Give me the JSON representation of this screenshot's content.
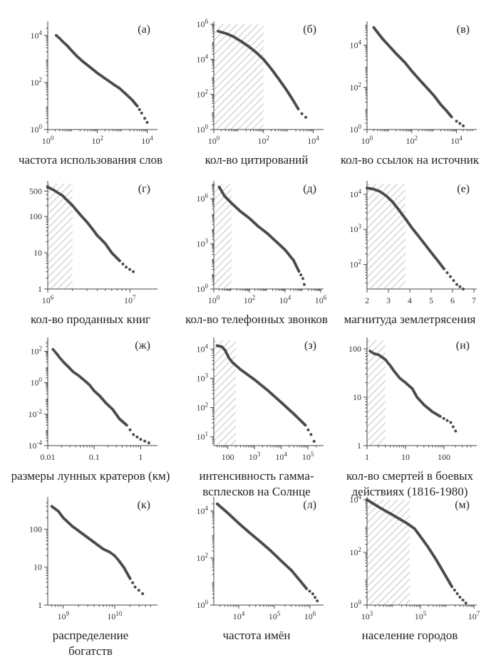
{
  "colors": {
    "points": "#4a4a4a",
    "hatch": "#c8c8c8",
    "axis": "#444444"
  },
  "chart_data": [
    {
      "id": "a",
      "letter": "(а)",
      "type": "scatter",
      "xlog": true,
      "ylog": true,
      "xlim": [
        1,
        20000
      ],
      "ylim": [
        1,
        30000
      ],
      "xticks": [
        1,
        100,
        10000
      ],
      "xtick_labels": [
        "10^0",
        "10^2",
        "10^4"
      ],
      "yticks": [
        1,
        100,
        10000
      ],
      "ytick_labels": [
        "10^0",
        "10^2",
        "10^4"
      ],
      "caption": "частота использования слов",
      "hatch": null,
      "points": [
        [
          2.2,
          10000
        ],
        [
          3,
          7500
        ],
        [
          4,
          5500
        ],
        [
          6,
          3700
        ],
        [
          9,
          2300
        ],
        [
          15,
          1300
        ],
        [
          25,
          800
        ],
        [
          50,
          450
        ],
        [
          100,
          250
        ],
        [
          200,
          150
        ],
        [
          400,
          90
        ],
        [
          800,
          55
        ],
        [
          1500,
          30
        ],
        [
          2500,
          18
        ],
        [
          4000,
          10
        ],
        [
          6000,
          5
        ],
        [
          8000,
          3
        ],
        [
          10000,
          2
        ]
      ]
    },
    {
      "id": "b",
      "letter": "(б)",
      "type": "scatter",
      "xlog": true,
      "ylog": true,
      "xlim": [
        1,
        20000
      ],
      "ylim": [
        1,
        1000000
      ],
      "xticks": [
        1,
        100,
        10000
      ],
      "xtick_labels": [
        "10^0",
        "10^2",
        "10^4"
      ],
      "yticks": [
        1,
        100,
        10000,
        1000000
      ],
      "ytick_labels": [
        "10^0",
        "10^2",
        "10^4",
        "10^6"
      ],
      "caption": "кол-во цитирований",
      "hatch": [
        1,
        100
      ],
      "points": [
        [
          1.5,
          400000
        ],
        [
          3,
          300000
        ],
        [
          6,
          200000
        ],
        [
          12,
          110000
        ],
        [
          25,
          55000
        ],
        [
          50,
          25000
        ],
        [
          100,
          10000
        ],
        [
          200,
          3000
        ],
        [
          400,
          800
        ],
        [
          800,
          200
        ],
        [
          1500,
          50
        ],
        [
          2500,
          15
        ],
        [
          3500,
          8
        ],
        [
          5000,
          5
        ]
      ]
    },
    {
      "id": "c",
      "letter": "(в)",
      "type": "scatter",
      "xlog": true,
      "ylog": true,
      "xlim": [
        1,
        60000
      ],
      "ylim": [
        1,
        100000
      ],
      "xticks": [
        1,
        100,
        10000
      ],
      "xtick_labels": [
        "10^0",
        "10^2",
        "10^4"
      ],
      "yticks": [
        1,
        100,
        10000
      ],
      "ytick_labels": [
        "10^0",
        "10^2",
        "10^4"
      ],
      "caption": "кол-во ссылок на источник",
      "hatch": null,
      "points": [
        [
          2,
          70000
        ],
        [
          3,
          40000
        ],
        [
          5,
          20000
        ],
        [
          10,
          9000
        ],
        [
          20,
          4000
        ],
        [
          50,
          1500
        ],
        [
          100,
          600
        ],
        [
          250,
          200
        ],
        [
          500,
          90
        ],
        [
          1000,
          40
        ],
        [
          2000,
          15
        ],
        [
          3500,
          8
        ],
        [
          6000,
          4
        ],
        [
          10000,
          2.5
        ],
        [
          20000,
          1.5
        ]
      ]
    },
    {
      "id": "d",
      "letter": "(г)",
      "type": "scatter",
      "xlog": true,
      "ylog": true,
      "xlim": [
        1000000,
        20000000
      ],
      "ylim": [
        1,
        800
      ],
      "xticks": [
        1000000,
        10000000
      ],
      "xtick_labels": [
        "10^6",
        "10^7"
      ],
      "yticks": [
        1,
        10,
        100
      ],
      "ytick_labels": [
        "1",
        "10",
        "100"
      ],
      "extra_ytick": [
        500,
        "500"
      ],
      "caption": "кол-во проданных книг",
      "hatch": [
        1000000,
        2000000
      ],
      "points": [
        [
          1000000,
          650
        ],
        [
          1200000,
          520
        ],
        [
          1500000,
          380
        ],
        [
          2000000,
          200
        ],
        [
          2500000,
          110
        ],
        [
          3000000,
          70
        ],
        [
          3500000,
          45
        ],
        [
          4000000,
          30
        ],
        [
          5000000,
          18
        ],
        [
          6000000,
          10
        ],
        [
          7500000,
          6
        ],
        [
          9000000,
          4
        ],
        [
          11000000,
          3
        ]
      ]
    },
    {
      "id": "e",
      "letter": "(д)",
      "type": "scatter",
      "xlog": true,
      "ylog": true,
      "xlim": [
        1,
        1000000
      ],
      "ylim": [
        1,
        10000000
      ],
      "xticks": [
        1,
        100,
        10000,
        1000000
      ],
      "xtick_labels": [
        "10^0",
        "10^2",
        "10^4",
        "10^6"
      ],
      "yticks": [
        1,
        1000,
        1000000
      ],
      "ytick_labels": [
        "10^0",
        "10^3",
        "10^6"
      ],
      "caption": "кол-во телефонных звонков",
      "hatch": [
        1,
        10
      ],
      "points": [
        [
          2,
          6000000
        ],
        [
          4,
          1500000
        ],
        [
          10,
          500000
        ],
        [
          30,
          150000
        ],
        [
          100,
          50000
        ],
        [
          300,
          15000
        ],
        [
          1000,
          5000
        ],
        [
          3000,
          1500
        ],
        [
          10000,
          400
        ],
        [
          30000,
          80
        ],
        [
          60000,
          15
        ],
        [
          100000,
          5
        ],
        [
          120000,
          2
        ]
      ]
    },
    {
      "id": "f",
      "letter": "(е)",
      "type": "scatter",
      "xlog": false,
      "ylog": true,
      "xlim": [
        2,
        7
      ],
      "ylim": [
        20,
        20000
      ],
      "xticks": [
        2,
        3,
        4,
        5,
        6,
        7
      ],
      "xtick_labels": [
        "2",
        "3",
        "4",
        "5",
        "6",
        "7"
      ],
      "yticks": [
        100,
        1000,
        10000
      ],
      "ytick_labels": [
        "10^2",
        "10^3",
        "10^4"
      ],
      "caption": "магнитуда землетрясения",
      "hatch": [
        2,
        3.8
      ],
      "points": [
        [
          2,
          15000
        ],
        [
          2.3,
          14000
        ],
        [
          2.6,
          12000
        ],
        [
          2.9,
          9000
        ],
        [
          3.2,
          6000
        ],
        [
          3.5,
          3500
        ],
        [
          3.8,
          2000
        ],
        [
          4.1,
          1100
        ],
        [
          4.4,
          650
        ],
        [
          4.7,
          380
        ],
        [
          5,
          220
        ],
        [
          5.3,
          130
        ],
        [
          5.6,
          75
        ],
        [
          5.9,
          45
        ],
        [
          6.2,
          27
        ],
        [
          6.5,
          20
        ]
      ]
    },
    {
      "id": "g",
      "letter": "(ж)",
      "type": "scatter",
      "xlog": true,
      "ylog": true,
      "xlim": [
        0.01,
        2
      ],
      "ylim": [
        0.0001,
        500
      ],
      "xticks": [
        0.01,
        0.1,
        1
      ],
      "xtick_labels": [
        "0.01",
        "0.1",
        "1"
      ],
      "yticks": [
        0.0001,
        0.01,
        1,
        100
      ],
      "ytick_labels": [
        "10^-4",
        "10^-2",
        "10^0",
        "10^2"
      ],
      "caption": "размеры лунных кратеров (км)",
      "hatch": null,
      "points": [
        [
          0.013,
          130
        ],
        [
          0.015,
          80
        ],
        [
          0.018,
          40
        ],
        [
          0.022,
          20
        ],
        [
          0.028,
          10
        ],
        [
          0.035,
          5
        ],
        [
          0.045,
          3
        ],
        [
          0.06,
          1.5
        ],
        [
          0.08,
          0.7
        ],
        [
          0.1,
          0.3
        ],
        [
          0.13,
          0.15
        ],
        [
          0.18,
          0.05
        ],
        [
          0.25,
          0.02
        ],
        [
          0.35,
          0.005
        ],
        [
          0.5,
          0.002
        ],
        [
          0.7,
          0.0005
        ],
        [
          1,
          0.00025
        ],
        [
          1.5,
          0.00015
        ]
      ]
    },
    {
      "id": "h",
      "letter": "(з)",
      "type": "scatter",
      "xlog": true,
      "ylog": true,
      "xlim": [
        30,
        300000
      ],
      "ylim": [
        5,
        20000
      ],
      "xticks": [
        100,
        1000,
        10000,
        100000
      ],
      "xtick_labels": [
        "100",
        "10^3",
        "10^4",
        "10^5"
      ],
      "yticks": [
        10,
        100,
        1000,
        10000
      ],
      "ytick_labels": [
        "10^1",
        "10^2",
        "10^3",
        "10^4"
      ],
      "caption": "интенсивность гамма-",
      "caption2": "всплесков на Солнце",
      "hatch": [
        30,
        200
      ],
      "points": [
        [
          40,
          13000
        ],
        [
          60,
          12000
        ],
        [
          80,
          9000
        ],
        [
          110,
          5000
        ],
        [
          150,
          3500
        ],
        [
          300,
          2000
        ],
        [
          1000,
          900
        ],
        [
          3000,
          400
        ],
        [
          10000,
          150
        ],
        [
          30000,
          60
        ],
        [
          80000,
          25
        ],
        [
          130000,
          12
        ],
        [
          170000,
          7
        ]
      ]
    },
    {
      "id": "i",
      "letter": "(и)",
      "type": "scatter",
      "xlog": true,
      "ylog": true,
      "xlim": [
        1,
        600
      ],
      "ylim": [
        1,
        150
      ],
      "xticks": [
        1,
        10,
        100
      ],
      "xtick_labels": [
        "1",
        "10",
        "100"
      ],
      "yticks": [
        1,
        10,
        100
      ],
      "ytick_labels": [
        "1",
        "10",
        "100"
      ],
      "caption": "кол-во смертей в боевых",
      "caption2": "действиях (1816-1980)",
      "hatch": [
        1,
        3
      ],
      "points": [
        [
          1.2,
          90
        ],
        [
          1.5,
          80
        ],
        [
          2,
          75
        ],
        [
          3,
          60
        ],
        [
          4,
          45
        ],
        [
          5,
          35
        ],
        [
          7,
          25
        ],
        [
          10,
          20
        ],
        [
          15,
          15
        ],
        [
          20,
          10
        ],
        [
          30,
          7
        ],
        [
          50,
          5
        ],
        [
          80,
          4
        ],
        [
          150,
          3
        ],
        [
          200,
          2
        ]
      ]
    },
    {
      "id": "j",
      "letter": "(к)",
      "type": "scatter",
      "xlog": true,
      "ylog": true,
      "xlim": [
        500000000,
        60000000000
      ],
      "ylim": [
        1,
        600
      ],
      "xticks": [
        1000000000,
        10000000000
      ],
      "xtick_labels": [
        "10^9",
        "10^10"
      ],
      "yticks": [
        1,
        10,
        100
      ],
      "ytick_labels": [
        "1",
        "10",
        "100"
      ],
      "caption": "распределение",
      "caption2": "богатств",
      "hatch": null,
      "points": [
        [
          600000000,
          400
        ],
        [
          800000000,
          300
        ],
        [
          1000000000,
          200
        ],
        [
          1500000000,
          120
        ],
        [
          2000000000,
          90
        ],
        [
          3000000000,
          60
        ],
        [
          4000000000,
          45
        ],
        [
          6000000000,
          30
        ],
        [
          8000000000,
          25
        ],
        [
          10000000000,
          20
        ],
        [
          12000000000,
          15
        ],
        [
          15000000000,
          10
        ],
        [
          20000000000,
          5
        ],
        [
          25000000000,
          3
        ],
        [
          35000000000,
          2
        ]
      ]
    },
    {
      "id": "k",
      "letter": "(л)",
      "type": "scatter",
      "xlog": true,
      "ylog": true,
      "xlim": [
        2000,
        2000000
      ],
      "ylim": [
        1,
        30000
      ],
      "xticks": [
        10000,
        100000,
        1000000
      ],
      "xtick_labels": [
        "10^4",
        "10^5",
        "10^6"
      ],
      "yticks": [
        1,
        100,
        10000
      ],
      "ytick_labels": [
        "10^0",
        "10^2",
        "10^4"
      ],
      "caption": "частота имён",
      "hatch": null,
      "points": [
        [
          2500,
          20000
        ],
        [
          5000,
          8000
        ],
        [
          10000,
          3000
        ],
        [
          20000,
          1200
        ],
        [
          40000,
          500
        ],
        [
          80000,
          200
        ],
        [
          150000,
          80
        ],
        [
          300000,
          30
        ],
        [
          500000,
          12
        ],
        [
          800000,
          5
        ],
        [
          1200000,
          3
        ],
        [
          1600000,
          1.5
        ]
      ]
    },
    {
      "id": "l",
      "letter": "(м)",
      "type": "scatter",
      "xlog": true,
      "ylog": true,
      "xlim": [
        1000,
        10000000
      ],
      "ylim": [
        1,
        10000
      ],
      "xticks": [
        1000,
        100000,
        10000000
      ],
      "xtick_labels": [
        "10^3",
        "10^5",
        "10^7"
      ],
      "yticks": [
        1,
        100,
        10000
      ],
      "ytick_labels": [
        "10^0",
        "10^2",
        "10^4"
      ],
      "caption": "население городов",
      "hatch": [
        1000,
        40000
      ],
      "points": [
        [
          1000,
          10000
        ],
        [
          3000,
          5000
        ],
        [
          10000,
          2500
        ],
        [
          30000,
          1300
        ],
        [
          60000,
          800
        ],
        [
          100000,
          400
        ],
        [
          200000,
          150
        ],
        [
          400000,
          50
        ],
        [
          800000,
          15
        ],
        [
          1500000,
          5
        ],
        [
          3000000,
          2
        ],
        [
          5000000,
          1.2
        ]
      ]
    }
  ]
}
